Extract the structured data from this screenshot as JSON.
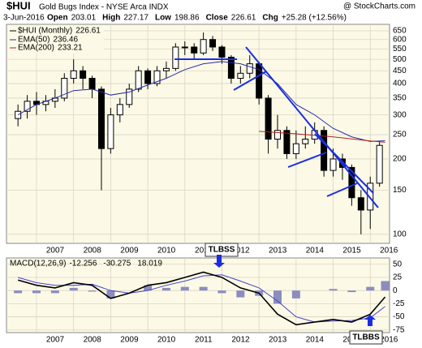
{
  "chart_data": [
    {
      "type": "candlestick",
      "title": "$HUI",
      "subtitle": "Gold Bugs Index - NYSE Arca INDX",
      "watermark": "@ StockCharts.com",
      "date": "3-Jun-2016",
      "stats": [
        {
          "label": "Open",
          "value": 203.01
        },
        {
          "label": "High",
          "value": 227.17
        },
        {
          "label": "Low",
          "value": 198.86
        },
        {
          "label": "Close",
          "value": 226.61
        },
        {
          "label": "Chg",
          "value": "+25.28 (+12.56%)"
        }
      ],
      "log_scale": true,
      "grid": true,
      "xlim": [
        2006.19,
        2016.52
      ],
      "xticks": [
        2007,
        2008,
        2009,
        2010,
        2011,
        2012,
        2013,
        2014,
        2015,
        2016
      ],
      "ylim": [
        92,
        690
      ],
      "yticks": [
        100,
        150,
        200,
        250,
        300,
        350,
        400,
        450,
        500,
        550,
        600,
        650
      ],
      "candles": {
        "name": "$HUI (Monthly)",
        "color": "#000000",
        "last": 226.61,
        "x": [
          2006.5,
          2006.75,
          2007,
          2007.25,
          2007.5,
          2007.75,
          2008,
          2008.25,
          2008.5,
          2008.75,
          2009,
          2009.25,
          2009.5,
          2009.75,
          2010,
          2010.25,
          2010.5,
          2010.75,
          2011,
          2011.25,
          2011.5,
          2011.75,
          2012,
          2012.25,
          2012.5,
          2012.75,
          2013,
          2013.25,
          2013.5,
          2013.75,
          2014,
          2014.25,
          2014.5,
          2014.75,
          2015,
          2015.25,
          2015.5,
          2015.75,
          2016,
          2016.25
        ],
        "open": [
          290,
          310,
          340,
          330,
          340,
          350,
          420,
          450,
          420,
          380,
          220,
          300,
          330,
          380,
          450,
          400,
          450,
          460,
          560,
          560,
          530,
          600,
          560,
          510,
          420,
          440,
          480,
          350,
          240,
          260,
          210,
          230,
          240,
          260,
          180,
          200,
          185,
          140,
          125,
          160
        ],
        "high": [
          330,
          360,
          370,
          360,
          380,
          440,
          500,
          470,
          430,
          390,
          320,
          350,
          400,
          470,
          460,
          470,
          490,
          580,
          590,
          580,
          640,
          620,
          570,
          520,
          470,
          520,
          490,
          360,
          300,
          270,
          260,
          270,
          280,
          270,
          220,
          210,
          190,
          150,
          170,
          235
        ],
        "low": [
          270,
          290,
          300,
          310,
          320,
          340,
          400,
          380,
          350,
          150,
          210,
          280,
          320,
          370,
          380,
          390,
          420,
          450,
          520,
          500,
          520,
          540,
          480,
          400,
          400,
          420,
          330,
          210,
          220,
          200,
          200,
          220,
          230,
          170,
          170,
          165,
          130,
          100,
          105,
          155
        ],
        "close": [
          310,
          340,
          330,
          340,
          350,
          420,
          450,
          420,
          380,
          220,
          300,
          330,
          380,
          450,
          400,
          450,
          460,
          560,
          560,
          530,
          600,
          560,
          510,
          420,
          440,
          480,
          350,
          240,
          260,
          210,
          230,
          240,
          260,
          180,
          200,
          185,
          140,
          125,
          160,
          226.61
        ]
      },
      "series": [
        {
          "name": "EMA(50)",
          "color": "#2a2aa8",
          "x": [
            2006.5,
            2007,
            2007.5,
            2008,
            2008.5,
            2009,
            2009.5,
            2010,
            2010.5,
            2011,
            2011.5,
            2012,
            2012.5,
            2013,
            2013.5,
            2014,
            2014.5,
            2015,
            2015.5,
            2016,
            2016.4
          ],
          "values": [
            300,
            330,
            350,
            375,
            380,
            360,
            370,
            395,
            420,
            455,
            480,
            490,
            480,
            455,
            400,
            330,
            300,
            265,
            245,
            235,
            236.46
          ]
        },
        {
          "name": "EMA(200)",
          "color": "#b02020",
          "x": [
            2013,
            2014,
            2015,
            2016,
            2016.4
          ],
          "values": [
            258,
            252,
            245,
            236,
            233.21
          ]
        }
      ]
    },
    {
      "type": "macd",
      "title": "MACD(12,26,9)",
      "grid": true,
      "xlim": [
        2006.19,
        2016.52
      ],
      "xticks": [
        2007,
        2008,
        2009,
        2010,
        2011,
        2012,
        2013,
        2014,
        2015,
        2016
      ],
      "ylim": [
        -80,
        62
      ],
      "yticks": [
        50,
        25,
        0,
        -25,
        -50,
        -75
      ],
      "x": [
        2006.5,
        2007,
        2007.5,
        2008,
        2008.5,
        2009,
        2009.5,
        2010,
        2010.5,
        2011,
        2011.5,
        2012,
        2012.5,
        2013,
        2013.5,
        2014,
        2014.5,
        2015,
        2015.5,
        2016,
        2016.4
      ],
      "series": [
        {
          "name": "MACD",
          "color": "#000000",
          "values": [
            20,
            10,
            5,
            15,
            10,
            -15,
            -5,
            10,
            15,
            25,
            35,
            25,
            5,
            -5,
            -45,
            -65,
            -60,
            -55,
            -60,
            -45,
            -12.256
          ]
        },
        {
          "name": "Signal",
          "color": "#4444cc",
          "values": [
            25,
            15,
            10,
            10,
            12,
            0,
            -5,
            0,
            10,
            18,
            28,
            30,
            18,
            5,
            -20,
            -50,
            -60,
            -58,
            -57,
            -52,
            -30.275
          ]
        },
        {
          "name": "Histogram",
          "color": "#8c8cc0",
          "values": [
            -5,
            -5,
            -5,
            5,
            -2,
            -15,
            0,
            10,
            5,
            7,
            7,
            -5,
            -13,
            -10,
            -25,
            -15,
            0,
            3,
            -3,
            7,
            18.019
          ]
        }
      ],
      "annotations": [
        "TLBSS",
        "TLBBS"
      ]
    }
  ]
}
